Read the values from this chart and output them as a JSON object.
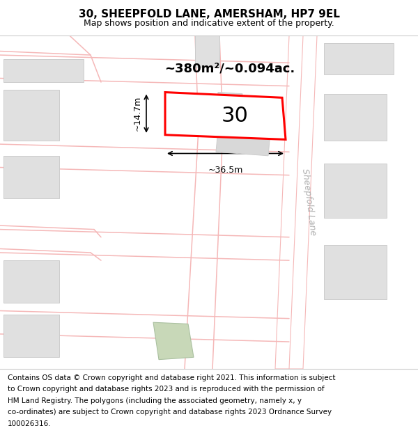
{
  "title": "30, SHEEPFOLD LANE, AMERSHAM, HP7 9EL",
  "subtitle": "Map shows position and indicative extent of the property.",
  "area_text": "~380m²/~0.094ac.",
  "label_30": "30",
  "dim_width": "~36.5m",
  "dim_height": "~14.7m",
  "road_label": "Sheepfold Lane",
  "map_bg": "#f8f6f3",
  "separator_color": "#cccccc",
  "title_fontsize": 11,
  "subtitle_fontsize": 9,
  "footer_fontsize": 7.5,
  "footer_lines": [
    "Contains OS data © Crown copyright and database right 2021. This information is subject",
    "to Crown copyright and database rights 2023 and is reproduced with the permission of",
    "HM Land Registry. The polygons (including the associated geometry, namely x, y",
    "co-ordinates) are subject to Crown copyright and database rights 2023 Ordnance Survey",
    "100026316."
  ],
  "road_color": "#f5b8b8",
  "building_fill": "#e0e0e0",
  "building_edge": "#cccccc",
  "road_fill": "#ffffff",
  "highlight_stroke": "#ff0000",
  "green_fill": "#c8d8b8",
  "green_edge": "#aac0a0"
}
